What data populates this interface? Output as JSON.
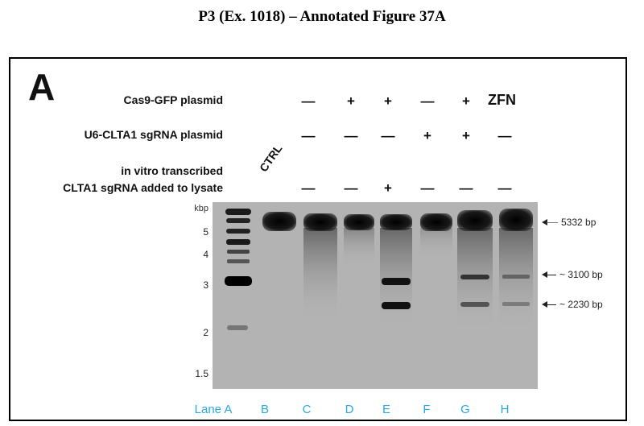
{
  "page_title": "P3 (Ex. 1018) – Annotated Figure 37A",
  "figure": {
    "panel_letter": "A",
    "rows": [
      {
        "label": "Cas9-GFP plasmid",
        "symbols": [
          "—",
          "+",
          "+",
          "—",
          "+"
        ],
        "extra": "ZFN"
      },
      {
        "label": "U6-CLTA1 sgRNA plasmid",
        "symbols": [
          "—",
          "—",
          "—",
          "+",
          "+",
          "—"
        ]
      },
      {
        "label_line1": "in vitro transcribed",
        "label_line2": "CLTA1 sgRNA added to lysate",
        "symbols": [
          "—",
          "—",
          "+",
          "—",
          "—",
          "—"
        ]
      }
    ],
    "ctrl_label": "CTRL",
    "kbp_label": "kbp",
    "size_ticks": [
      "5",
      "4",
      "3",
      "2",
      "1.5"
    ],
    "band_annotations": [
      "5332 bp",
      "~ 3100 bp",
      "~ 2230 bp"
    ],
    "lanes": [
      "Lane A",
      "B",
      "C",
      "D",
      "E",
      "F",
      "G",
      "H"
    ],
    "colors": {
      "lane_labels": "#29a9e1",
      "gel_background": "#b7b7b7",
      "band": "#111111"
    }
  }
}
